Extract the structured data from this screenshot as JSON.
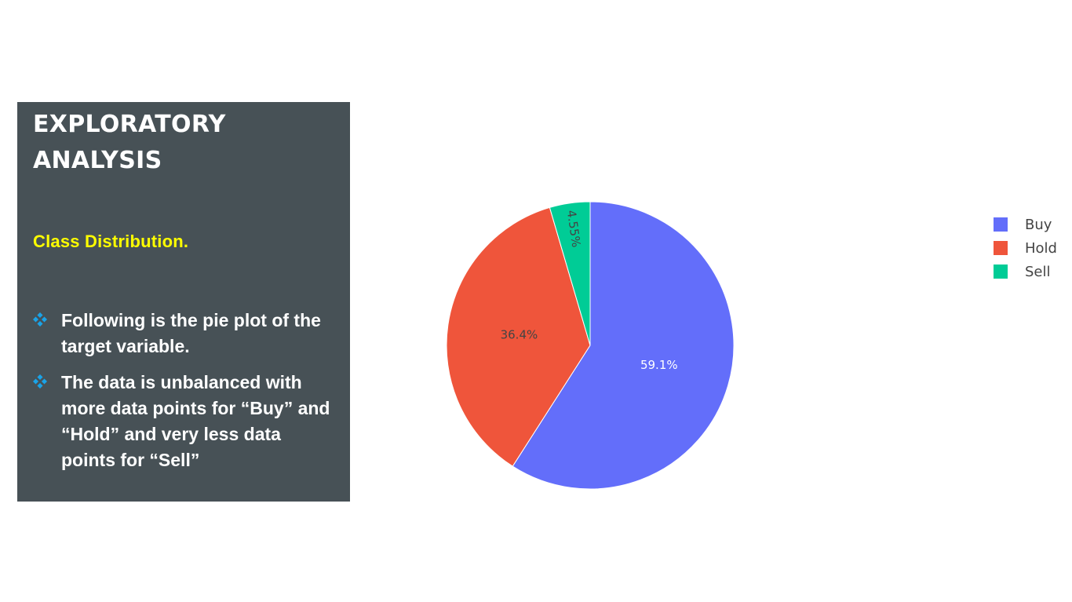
{
  "panel": {
    "title_line1": "EXPLORATORY",
    "title_line2": "ANALYSIS",
    "subtitle": "Class Distribution.",
    "bullet_icon": "diamond-bullet-icon",
    "bullets": [
      "Following is the pie plot of the target variable.",
      "The data is unbalanced with more data points for “Buy” and “Hold” and very less data points for “Sell”"
    ],
    "colors": {
      "background": "#475156",
      "title": "#ffffff",
      "subtitle": "#ffff00",
      "bullet_icon": "#1aa3e8"
    }
  },
  "chart_data": {
    "type": "pie",
    "slices": [
      {
        "label": "Buy",
        "value": 59.1,
        "text": "59.1%",
        "color": "#636efa"
      },
      {
        "label": "Hold",
        "value": 36.4,
        "text": "36.4%",
        "color": "#ef553b"
      },
      {
        "label": "Sell",
        "value": 4.55,
        "text": "4.55%",
        "color": "#00cc96"
      }
    ],
    "legend": [
      "Buy",
      "Hold",
      "Sell"
    ],
    "legend_position": "top-right",
    "direction": "clockwise",
    "start": "top"
  }
}
